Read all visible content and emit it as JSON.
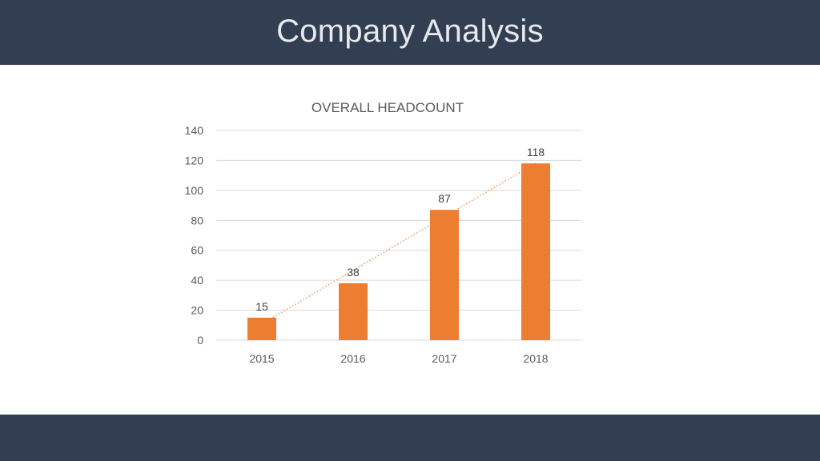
{
  "slide": {
    "title": "Company Analysis"
  },
  "colors": {
    "header_bg": "#323e51",
    "bar": "#ed7d31",
    "trendline": "#ed7d31",
    "grid": "#d9d9d9"
  },
  "chart_data": {
    "type": "bar",
    "title": "OVERALL HEADCOUNT",
    "categories": [
      "2015",
      "2016",
      "2017",
      "2018"
    ],
    "series": [
      {
        "values": [
          15,
          38,
          87,
          118
        ]
      }
    ],
    "data_labels": [
      "15",
      "38",
      "87",
      "118"
    ],
    "y_ticks": [
      "0",
      "20",
      "40",
      "60",
      "80",
      "100",
      "120",
      "140"
    ],
    "ylim": [
      0,
      140
    ],
    "grid": true,
    "trendline": "linear, dotted",
    "legend": "none"
  }
}
